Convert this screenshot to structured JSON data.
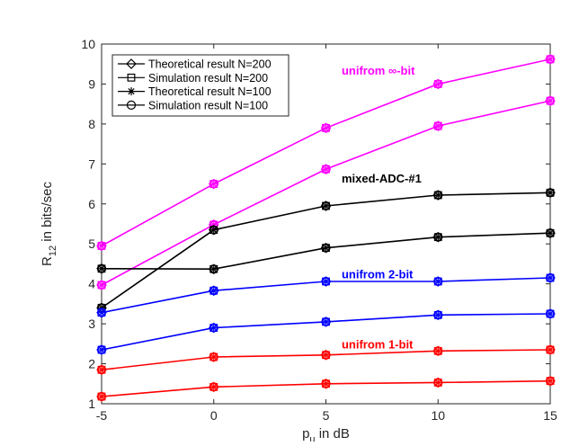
{
  "chart_data": {
    "type": "line",
    "title": "",
    "xlabel_main": "p",
    "xlabel_sub": "u",
    "xlabel_rest": " in dB",
    "ylabel_main": "R",
    "ylabel_sub": "12",
    "ylabel_rest": " in bits/sec",
    "x": [
      -5,
      0,
      5,
      10,
      15
    ],
    "xlim": [
      -5,
      15
    ],
    "ylim": [
      1,
      10
    ],
    "xticks": [
      -5,
      0,
      5,
      10,
      15
    ],
    "yticks": [
      1,
      2,
      3,
      4,
      5,
      6,
      7,
      8,
      9,
      10
    ],
    "grid": false,
    "legend_position": "top-left",
    "legend": [
      {
        "label": "Theoretical result N=200",
        "marker": "diamond"
      },
      {
        "label": "Simulation result N=200",
        "marker": "square"
      },
      {
        "label": "Theoretical result N=100",
        "marker": "asterisk"
      },
      {
        "label": "Simulation result N=100",
        "marker": "circle"
      }
    ],
    "annotations": [
      {
        "text": "unifrom ∞-bit",
        "color": "#ff00ff",
        "x": 5.7,
        "y": 9.35
      },
      {
        "text": "mixed-ADC-#1",
        "color": "#000000",
        "x": 5.7,
        "y": 6.65
      },
      {
        "text": "unifrom 2-bit",
        "color": "#0000ff",
        "x": 5.7,
        "y": 4.25
      },
      {
        "text": "unifrom 1-bit",
        "color": "#ff0000",
        "x": 5.7,
        "y": 2.5
      }
    ],
    "series": [
      {
        "name": "unifrom ∞-bit N=200",
        "color": "#ff00ff",
        "values": [
          4.95,
          6.5,
          7.9,
          9.0,
          9.62
        ]
      },
      {
        "name": "unifrom ∞-bit N=100",
        "color": "#ff00ff",
        "values": [
          3.97,
          5.48,
          6.87,
          7.95,
          8.58
        ]
      },
      {
        "name": "mixed-ADC-#1 N=200",
        "color": "#000000",
        "values": [
          3.4,
          5.35,
          5.95,
          6.22,
          6.28
        ]
      },
      {
        "name": "mixed-ADC-#1 N=100",
        "color": "#000000",
        "values": [
          4.38,
          4.37,
          4.9,
          5.17,
          5.27
        ]
      },
      {
        "name": "unifrom 2-bit N=200",
        "color": "#0000ff",
        "values": [
          3.28,
          3.83,
          4.06,
          4.06,
          4.15
        ]
      },
      {
        "name": "unifrom 2-bit N=100",
        "color": "#0000ff",
        "values": [
          2.35,
          2.9,
          3.05,
          3.22,
          3.25
        ]
      },
      {
        "name": "unifrom 1-bit N=200",
        "color": "#ff0000",
        "values": [
          1.85,
          2.17,
          2.22,
          2.32,
          2.35
        ]
      },
      {
        "name": "unifrom 1-bit N=100",
        "color": "#ff0000",
        "values": [
          1.18,
          1.42,
          1.5,
          1.53,
          1.57
        ]
      }
    ]
  }
}
